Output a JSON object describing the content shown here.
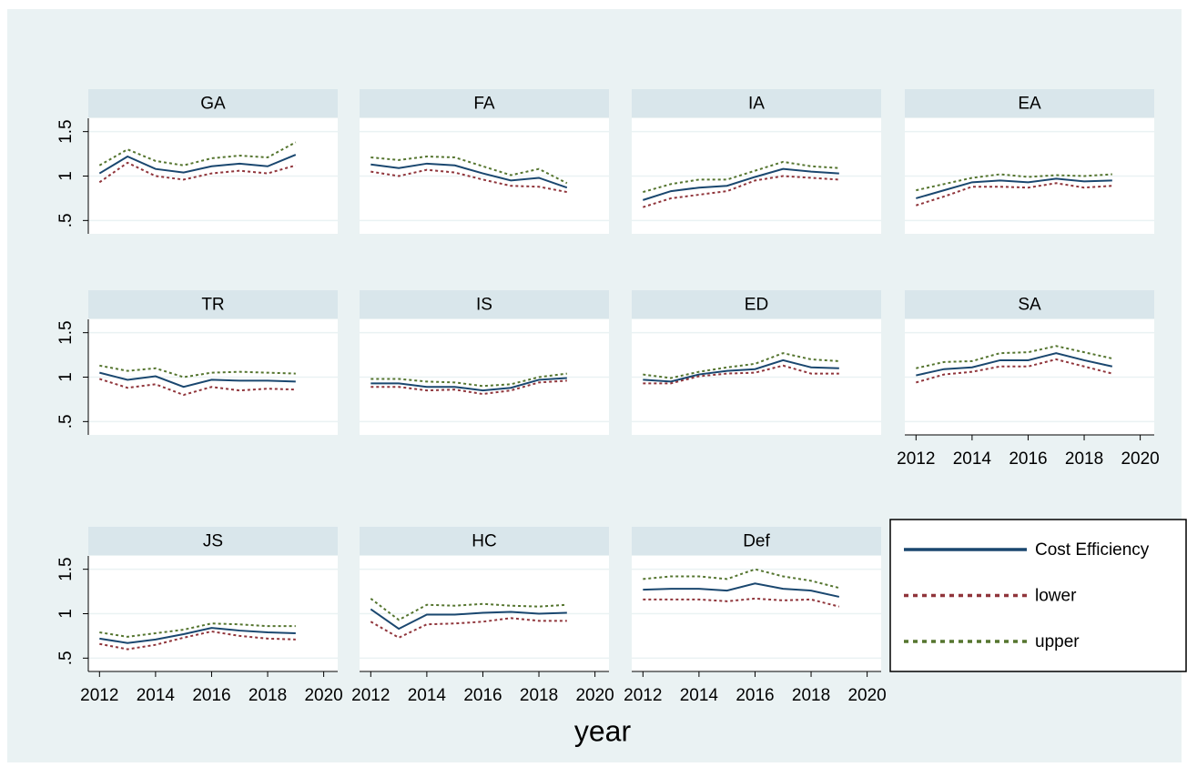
{
  "chart_data": {
    "type": "line",
    "xlabel": "year",
    "x": [
      2012,
      2013,
      2014,
      2015,
      2016,
      2017,
      2018,
      2019
    ],
    "xlim": [
      2011.6,
      2020.5
    ],
    "xticks": [
      2012,
      2014,
      2016,
      2018,
      2020
    ],
    "ylim": [
      0.35,
      1.65
    ],
    "yticks": [
      {
        "value": 0.5,
        "label": ".5"
      },
      1,
      1.5
    ],
    "grid": true,
    "series": [
      {
        "name": "Cost Efficiency",
        "color": "#1a476f",
        "style": "solid"
      },
      {
        "name": "lower",
        "color": "#90353b",
        "style": "dot"
      },
      {
        "name": "upper",
        "color": "#55752f",
        "style": "dot"
      }
    ],
    "panels": [
      {
        "title": "GA",
        "values": [
          [
            1.03,
            1.22,
            1.08,
            1.04,
            1.11,
            1.14,
            1.11,
            1.24
          ],
          [
            0.93,
            1.15,
            1.0,
            0.96,
            1.03,
            1.06,
            1.03,
            1.12
          ],
          [
            1.12,
            1.3,
            1.17,
            1.12,
            1.2,
            1.23,
            1.21,
            1.38
          ]
        ]
      },
      {
        "title": "FA",
        "values": [
          [
            1.13,
            1.09,
            1.14,
            1.12,
            1.03,
            0.95,
            0.98,
            0.87
          ],
          [
            1.05,
            1.0,
            1.07,
            1.04,
            0.96,
            0.89,
            0.88,
            0.82
          ],
          [
            1.21,
            1.18,
            1.22,
            1.21,
            1.11,
            1.01,
            1.08,
            0.92
          ]
        ]
      },
      {
        "title": "IA",
        "values": [
          [
            0.73,
            0.83,
            0.87,
            0.89,
            0.99,
            1.08,
            1.05,
            1.03
          ],
          [
            0.65,
            0.75,
            0.79,
            0.83,
            0.95,
            1.0,
            0.98,
            0.96
          ],
          [
            0.82,
            0.91,
            0.96,
            0.96,
            1.06,
            1.16,
            1.11,
            1.09
          ]
        ]
      },
      {
        "title": "EA",
        "values": [
          [
            0.75,
            0.84,
            0.93,
            0.95,
            0.93,
            0.97,
            0.94,
            0.95
          ],
          [
            0.67,
            0.77,
            0.88,
            0.88,
            0.87,
            0.92,
            0.87,
            0.89
          ],
          [
            0.84,
            0.91,
            0.98,
            1.02,
            0.99,
            1.01,
            1.0,
            1.02
          ]
        ]
      },
      {
        "title": "TR",
        "values": [
          [
            1.05,
            0.97,
            1.01,
            0.89,
            0.97,
            0.96,
            0.96,
            0.95
          ],
          [
            0.98,
            0.88,
            0.92,
            0.8,
            0.89,
            0.85,
            0.87,
            0.86
          ],
          [
            1.13,
            1.07,
            1.1,
            1.0,
            1.05,
            1.06,
            1.05,
            1.04
          ]
        ]
      },
      {
        "title": "IS",
        "values": [
          [
            0.93,
            0.93,
            0.89,
            0.89,
            0.85,
            0.88,
            0.97,
            0.99
          ],
          [
            0.89,
            0.89,
            0.85,
            0.86,
            0.81,
            0.85,
            0.94,
            0.96
          ],
          [
            0.98,
            0.98,
            0.95,
            0.94,
            0.9,
            0.92,
            1.0,
            1.04
          ]
        ]
      },
      {
        "title": "ED",
        "values": [
          [
            0.97,
            0.95,
            1.03,
            1.07,
            1.09,
            1.19,
            1.11,
            1.1
          ],
          [
            0.93,
            0.93,
            1.01,
            1.04,
            1.05,
            1.13,
            1.04,
            1.04
          ],
          [
            1.03,
            0.99,
            1.06,
            1.11,
            1.15,
            1.27,
            1.2,
            1.18
          ]
        ]
      },
      {
        "title": "SA",
        "values": [
          [
            1.02,
            1.09,
            1.11,
            1.19,
            1.19,
            1.27,
            1.19,
            1.12
          ],
          [
            0.94,
            1.03,
            1.06,
            1.12,
            1.12,
            1.2,
            1.12,
            1.04
          ],
          [
            1.1,
            1.17,
            1.18,
            1.27,
            1.28,
            1.35,
            1.28,
            1.21
          ]
        ]
      },
      {
        "title": "JS",
        "values": [
          [
            0.72,
            0.67,
            0.71,
            0.77,
            0.84,
            0.81,
            0.79,
            0.78
          ],
          [
            0.66,
            0.6,
            0.65,
            0.73,
            0.8,
            0.75,
            0.72,
            0.71
          ],
          [
            0.79,
            0.74,
            0.78,
            0.82,
            0.89,
            0.88,
            0.86,
            0.86
          ]
        ]
      },
      {
        "title": "HC",
        "values": [
          [
            1.05,
            0.83,
            0.99,
            0.99,
            1.01,
            1.02,
            1.0,
            1.01
          ],
          [
            0.91,
            0.73,
            0.88,
            0.89,
            0.91,
            0.95,
            0.92,
            0.92
          ],
          [
            1.17,
            0.93,
            1.1,
            1.09,
            1.11,
            1.09,
            1.08,
            1.1
          ]
        ]
      },
      {
        "title": "Def",
        "values": [
          [
            1.27,
            1.28,
            1.28,
            1.26,
            1.34,
            1.28,
            1.26,
            1.19
          ],
          [
            1.16,
            1.16,
            1.16,
            1.14,
            1.17,
            1.15,
            1.16,
            1.08
          ],
          [
            1.39,
            1.42,
            1.42,
            1.39,
            1.5,
            1.42,
            1.37,
            1.29
          ]
        ]
      }
    ]
  }
}
